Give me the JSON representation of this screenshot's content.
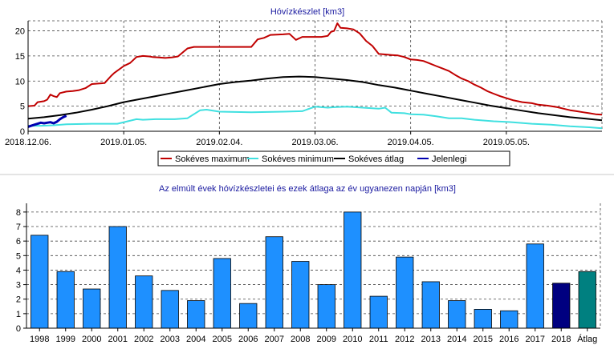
{
  "chart_data": [
    {
      "type": "line",
      "title": "Hóvízkészlet [km3]",
      "xlabel": "",
      "ylabel": "",
      "x_tick_labels": [
        "2018.12.06.",
        "2019.01.05.",
        "2019.02.04.",
        "2019.03.06.",
        "2019.04.05.",
        "2019.05.05."
      ],
      "y_ticks": [
        0,
        5,
        10,
        15,
        20
      ],
      "ylim": [
        0,
        22
      ],
      "x_domain_days": [
        0,
        180
      ],
      "grid": true,
      "legend_position": "bottom",
      "series": [
        {
          "name": "Sokéves maximum",
          "color": "#c00000",
          "x": [
            0,
            2,
            3,
            5,
            6,
            7,
            8,
            9,
            10,
            12,
            14,
            16,
            18,
            20,
            22,
            24,
            26,
            27,
            30,
            32,
            34,
            36,
            38,
            39,
            41,
            43,
            45,
            47,
            50,
            52,
            55,
            57,
            60,
            65,
            70,
            72,
            74,
            76,
            80,
            82,
            84,
            86,
            88,
            90,
            92,
            94,
            95,
            96,
            97,
            98,
            100,
            102,
            104,
            106,
            108,
            110,
            112,
            114,
            116,
            118,
            120,
            122,
            124,
            126,
            128,
            130,
            132,
            134,
            136,
            138,
            140,
            142,
            144,
            146,
            148,
            150,
            152,
            155,
            158,
            160,
            163,
            166,
            168,
            170,
            172,
            174,
            176,
            178,
            180
          ],
          "y": [
            5.0,
            5.1,
            5.8,
            6.0,
            6.3,
            7.3,
            7.0,
            6.8,
            7.6,
            7.9,
            8.0,
            8.2,
            8.6,
            9.4,
            9.5,
            9.6,
            11.0,
            11.6,
            13.0,
            13.6,
            14.8,
            15.0,
            14.9,
            14.8,
            14.7,
            14.6,
            14.7,
            14.9,
            16.5,
            16.8,
            16.8,
            16.8,
            16.8,
            16.8,
            16.8,
            18.3,
            18.6,
            19.2,
            19.3,
            19.4,
            18.2,
            18.8,
            18.8,
            18.8,
            18.8,
            19.0,
            19.8,
            20.0,
            21.5,
            20.6,
            20.5,
            20.3,
            19.5,
            18.0,
            17.0,
            15.4,
            15.3,
            15.2,
            15.1,
            14.8,
            14.3,
            14.2,
            14.0,
            13.5,
            13.0,
            12.5,
            12.0,
            11.2,
            10.5,
            10.0,
            9.3,
            8.7,
            8.0,
            7.5,
            7.0,
            6.6,
            6.2,
            5.8,
            5.6,
            5.3,
            5.1,
            4.8,
            4.5,
            4.2,
            4.0,
            3.8,
            3.6,
            3.4,
            3.3
          ]
        },
        {
          "name": "Sokéves minimum",
          "color": "#40e0e0",
          "x": [
            0,
            4,
            8,
            12,
            20,
            28,
            34,
            36,
            40,
            46,
            50,
            54,
            56,
            60,
            70,
            80,
            86,
            90,
            94,
            96,
            100,
            110,
            112,
            114,
            118,
            120,
            124,
            128,
            132,
            136,
            140,
            146,
            152,
            158,
            164,
            170,
            176,
            180
          ],
          "y": [
            1.1,
            1.1,
            1.2,
            1.4,
            1.5,
            1.5,
            2.4,
            2.3,
            2.4,
            2.4,
            2.6,
            4.2,
            4.3,
            3.9,
            3.8,
            3.9,
            4.0,
            4.9,
            4.7,
            4.8,
            4.9,
            4.5,
            4.7,
            3.7,
            3.6,
            3.4,
            3.3,
            3.0,
            2.6,
            2.6,
            2.3,
            2.0,
            1.8,
            1.5,
            1.3,
            1.0,
            0.8,
            0.6
          ]
        },
        {
          "name": "Sokéves átlag",
          "color": "#000000",
          "x": [
            0,
            5,
            10,
            15,
            20,
            25,
            30,
            35,
            40,
            45,
            50,
            55,
            60,
            65,
            70,
            75,
            80,
            85,
            90,
            95,
            100,
            105,
            110,
            115,
            120,
            125,
            130,
            135,
            140,
            145,
            150,
            155,
            160,
            165,
            170,
            175,
            180
          ],
          "y": [
            2.5,
            2.8,
            3.2,
            3.7,
            4.3,
            5.0,
            5.8,
            6.4,
            7.0,
            7.6,
            8.2,
            8.8,
            9.4,
            9.8,
            10.1,
            10.5,
            10.8,
            10.9,
            10.8,
            10.5,
            10.2,
            9.8,
            9.2,
            8.7,
            8.1,
            7.5,
            6.9,
            6.3,
            5.7,
            5.1,
            4.6,
            4.1,
            3.6,
            3.2,
            2.8,
            2.5,
            2.2
          ]
        },
        {
          "name": "Jelenlegi",
          "color": "#0000b0",
          "x": [
            0,
            1,
            2,
            3,
            4,
            5,
            6,
            7,
            8,
            9,
            10,
            11,
            12
          ],
          "y": [
            0.9,
            1.1,
            1.3,
            1.5,
            1.7,
            1.6,
            1.7,
            1.8,
            1.6,
            1.9,
            2.4,
            2.8,
            3.1
          ]
        }
      ]
    },
    {
      "type": "bar",
      "title": "Az elmúlt évek hóvízkészletei és ezek átlaga az év ugyanezen napján [km3]",
      "xlabel": "",
      "ylabel": "",
      "categories": [
        "1998",
        "1999",
        "2000",
        "2001",
        "2002",
        "2003",
        "2004",
        "2005",
        "2006",
        "2007",
        "2008",
        "2009",
        "2010",
        "2011",
        "2012",
        "2013",
        "2014",
        "2015",
        "2016",
        "2017",
        "2018",
        "Átlag"
      ],
      "values": [
        6.4,
        3.9,
        2.7,
        7.0,
        3.6,
        2.6,
        1.9,
        4.8,
        1.7,
        6.3,
        4.6,
        3.0,
        8.0,
        2.2,
        4.9,
        3.2,
        1.9,
        1.3,
        1.2,
        5.8,
        3.1,
        3.9
      ],
      "colors": [
        "#1e90ff",
        "#1e90ff",
        "#1e90ff",
        "#1e90ff",
        "#1e90ff",
        "#1e90ff",
        "#1e90ff",
        "#1e90ff",
        "#1e90ff",
        "#1e90ff",
        "#1e90ff",
        "#1e90ff",
        "#1e90ff",
        "#1e90ff",
        "#1e90ff",
        "#1e90ff",
        "#1e90ff",
        "#1e90ff",
        "#1e90ff",
        "#1e90ff",
        "#000080",
        "#008080"
      ],
      "y_ticks": [
        0,
        1,
        2,
        3,
        4,
        5,
        6,
        7,
        8
      ],
      "ylim": [
        0,
        8.6
      ],
      "grid": true
    }
  ]
}
